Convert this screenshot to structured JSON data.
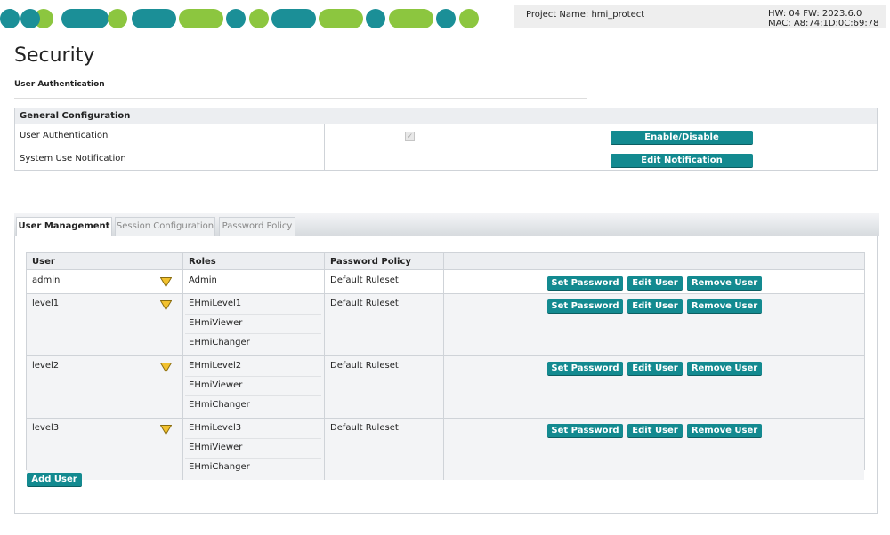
{
  "header": {
    "project": "Project Name: hmi_protect",
    "hw": "HW: 04 FW: 2023.6.0",
    "mac": "MAC: A8:74:1D:0C:69:78"
  },
  "page": {
    "title": "Security",
    "subtitle": "User Authentication"
  },
  "general": {
    "title": "General Configuration",
    "rows": [
      {
        "label": "User Authentication",
        "button": "Enable/Disable"
      },
      {
        "label": "System Use Notification",
        "button": "Edit Notification"
      }
    ]
  },
  "tabs": [
    "User Management",
    "Session Configuration",
    "Password Policy"
  ],
  "users": {
    "columns": [
      "User",
      "Roles",
      "Password Policy"
    ],
    "rows": [
      {
        "user": "admin",
        "roles": [
          "Admin"
        ],
        "policy": "Default Ruleset"
      },
      {
        "user": "level1",
        "roles": [
          "EHmiLevel1",
          "EHmiViewer",
          "EHmiChanger"
        ],
        "policy": "Default Ruleset"
      },
      {
        "user": "level2",
        "roles": [
          "EHmiLevel2",
          "EHmiViewer",
          "EHmiChanger"
        ],
        "policy": "Default Ruleset"
      },
      {
        "user": "level3",
        "roles": [
          "EHmiLevel3",
          "EHmiViewer",
          "EHmiChanger"
        ],
        "policy": "Default Ruleset"
      }
    ],
    "actions": [
      "Set Password",
      "Edit User",
      "Remove User"
    ],
    "add": "Add User"
  }
}
